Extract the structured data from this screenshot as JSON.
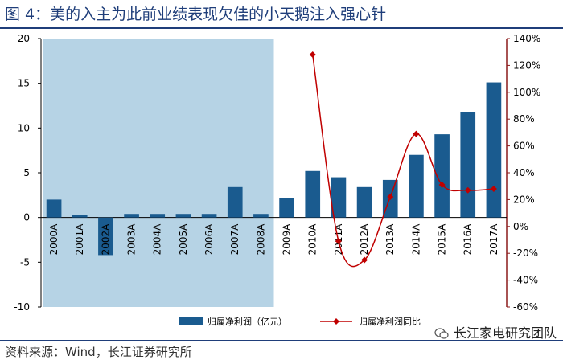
{
  "title": "图 4：美的入主为此前业绩表现欠佳的小天鹅注入强心针",
  "source": "资料来源：Wind，长江证券研究所",
  "watermark": "长江家电研究团队",
  "colors": {
    "title": "#1f3e7a",
    "bar": "#1a5b8f",
    "line": "#c00000",
    "shade": "#a9cbe0",
    "red_axis": "#8b1a1a"
  },
  "chart_data": {
    "type": "bar+line",
    "categories": [
      "2000A",
      "2001A",
      "2002A",
      "2003A",
      "2004A",
      "2005A",
      "2006A",
      "2007A",
      "2008A",
      "2009A",
      "2010A",
      "2011A",
      "2012A",
      "2013A",
      "2014A",
      "2015A",
      "2016A",
      "2017A"
    ],
    "series": [
      {
        "name": "归属净利润（亿元）",
        "type": "bar",
        "axis": "left",
        "values": [
          2.0,
          0.3,
          -4.2,
          0.4,
          0.4,
          0.4,
          0.4,
          3.4,
          0.4,
          2.2,
          5.2,
          4.5,
          3.4,
          4.2,
          7.0,
          9.3,
          11.8,
          15.1
        ]
      },
      {
        "name": "归属净利润同比",
        "type": "line",
        "axis": "right",
        "values": [
          null,
          null,
          null,
          null,
          null,
          null,
          null,
          null,
          null,
          null,
          1.28,
          -0.11,
          -0.25,
          0.22,
          0.69,
          0.31,
          0.27,
          0.28
        ]
      }
    ],
    "y_left": {
      "range": [
        -10,
        20
      ],
      "ticks": [
        "-10",
        "-5",
        "0",
        "5",
        "10",
        "15",
        "20"
      ],
      "tick_values": [
        -10,
        -5,
        0,
        5,
        10,
        15,
        20
      ]
    },
    "y_right": {
      "range": [
        -0.6,
        1.4
      ],
      "ticks": [
        "-60%",
        "-40%",
        "-20%",
        "0%",
        "20%",
        "40%",
        "60%",
        "80%",
        "100%",
        "120%",
        "140%"
      ],
      "tick_values": [
        -0.6,
        -0.4,
        -0.2,
        0,
        0.2,
        0.4,
        0.6,
        0.8,
        1.0,
        1.2,
        1.4
      ]
    },
    "shaded_range": [
      "2000A",
      "2008A"
    ],
    "legend_position": "bottom",
    "grid": false
  }
}
